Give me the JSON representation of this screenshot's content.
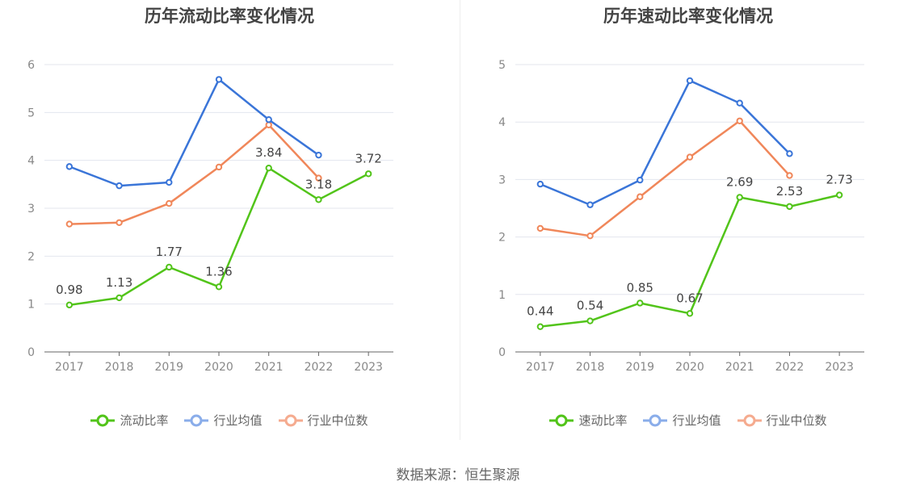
{
  "colors": {
    "company": "#52c41a",
    "industry_avg": "#3a75d8",
    "industry_median": "#f0875a",
    "legend_avg": "#8aadea",
    "legend_median": "#f5ab8f",
    "grid": "#e3e6ee",
    "axis": "#666666",
    "tick": "#888888",
    "label": "#444444"
  },
  "source": "数据来源：恒生聚源",
  "chart_data": [
    {
      "type": "line",
      "title": "历年流动比率变化情况",
      "categories": [
        "2017",
        "2018",
        "2019",
        "2020",
        "2021",
        "2022",
        "2023"
      ],
      "ylim": [
        0,
        6
      ],
      "yticks": [
        "0",
        "1",
        "2",
        "3",
        "4",
        "5",
        "6"
      ],
      "series": [
        {
          "name": "流动比率",
          "values": [
            0.98,
            1.13,
            1.77,
            1.36,
            3.84,
            3.18,
            3.72
          ],
          "labels": [
            "0.98",
            "1.13",
            "1.77",
            "1.36",
            "3.84",
            "3.18",
            "3.72"
          ]
        },
        {
          "name": "行业均值",
          "values": [
            3.87,
            3.47,
            3.54,
            5.69,
            4.85,
            4.11,
            null
          ]
        },
        {
          "name": "行业中位数",
          "values": [
            2.67,
            2.7,
            3.1,
            3.86,
            4.74,
            3.63,
            null
          ]
        }
      ]
    },
    {
      "type": "line",
      "title": "历年速动比率变化情况",
      "categories": [
        "2017",
        "2018",
        "2019",
        "2020",
        "2021",
        "2022",
        "2023"
      ],
      "ylim": [
        0,
        5
      ],
      "yticks": [
        "0",
        "1",
        "2",
        "3",
        "4",
        "5"
      ],
      "series": [
        {
          "name": "速动比率",
          "values": [
            0.44,
            0.54,
            0.85,
            0.67,
            2.69,
            2.53,
            2.73
          ],
          "labels": [
            "0.44",
            "0.54",
            "0.85",
            "0.67",
            "2.69",
            "2.53",
            "2.73"
          ]
        },
        {
          "name": "行业均值",
          "values": [
            2.92,
            2.56,
            2.99,
            4.72,
            4.33,
            3.45,
            null
          ]
        },
        {
          "name": "行业中位数",
          "values": [
            2.15,
            2.02,
            2.7,
            3.39,
            4.02,
            3.07,
            null
          ]
        }
      ]
    }
  ]
}
